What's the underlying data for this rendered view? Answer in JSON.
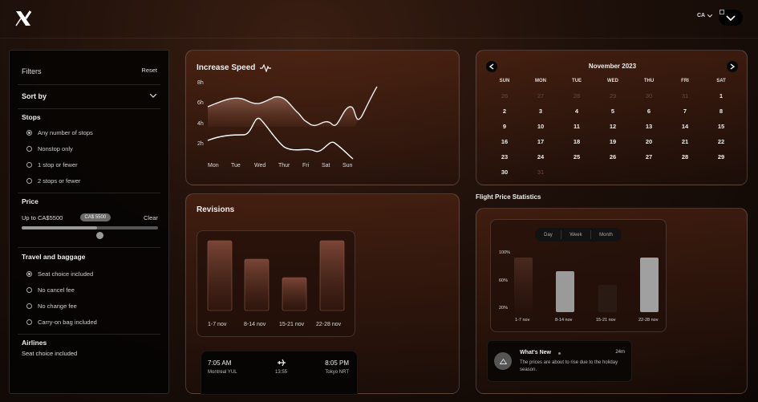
{
  "header": {
    "country": "CA",
    "menu_label": "menu"
  },
  "filters": {
    "title": "Filters",
    "reset": "Reset",
    "sort_by": "Sort by",
    "stops_title": "Stops",
    "stops_options": [
      {
        "label": "Any number of stops",
        "selected": true
      },
      {
        "label": "Nonstop only",
        "selected": false
      },
      {
        "label": "1 stop or fewer",
        "selected": false
      },
      {
        "label": "2 stops or fewer",
        "selected": false
      }
    ],
    "price_title": "Price",
    "price_up_to": "Up to CA$5500",
    "price_clear": "Clear",
    "price_pill": "CA$ 5500",
    "price_fraction": 0.55,
    "travel_title": "Travel and baggage",
    "travel_options": [
      {
        "label": "Seat choice included",
        "selected": true
      },
      {
        "label": "No cancel fee",
        "selected": false
      },
      {
        "label": "No change fee",
        "selected": false
      },
      {
        "label": "Carry-on bag included",
        "selected": false
      }
    ],
    "airlines_title": "Airlines",
    "airlines_value": "Seat choice included"
  },
  "speed": {
    "title": "Increase Speed",
    "y_ticks": [
      "8h",
      "6h",
      "4h",
      "2h"
    ],
    "days": [
      "Mon",
      "Tue",
      "Wed",
      "Thur",
      "Fri",
      "Sat",
      "Sun"
    ]
  },
  "revisions": {
    "title": "Revisions",
    "labels": [
      "1-7 nov",
      "8-14 nov",
      "15-21 nov",
      "22-28 nov"
    ],
    "flight": {
      "depart_time": "7:05 AM",
      "depart_place": "Montreal YUL",
      "duration": "13:55",
      "arrive_time": "8:05 PM",
      "arrive_place": "Tokyo NRT"
    }
  },
  "calendar": {
    "month": "November 2023",
    "weekdays": [
      "SUN",
      "MON",
      "TUE",
      "WED",
      "THU",
      "FRI",
      "SAT"
    ],
    "weeks": [
      [
        {
          "d": "26",
          "m": true
        },
        {
          "d": "27",
          "m": true
        },
        {
          "d": "28",
          "m": true
        },
        {
          "d": "29",
          "m": true
        },
        {
          "d": "30",
          "m": true
        },
        {
          "d": "31",
          "m": true
        },
        {
          "d": "1",
          "m": false
        }
      ],
      [
        {
          "d": "2",
          "m": false
        },
        {
          "d": "3",
          "m": false
        },
        {
          "d": "4",
          "m": false
        },
        {
          "d": "5",
          "m": false
        },
        {
          "d": "6",
          "m": false
        },
        {
          "d": "7",
          "m": false
        },
        {
          "d": "8",
          "m": false
        }
      ],
      [
        {
          "d": "9",
          "m": false
        },
        {
          "d": "10",
          "m": false
        },
        {
          "d": "11",
          "m": false
        },
        {
          "d": "12",
          "m": false
        },
        {
          "d": "13",
          "m": false
        },
        {
          "d": "14",
          "m": false
        },
        {
          "d": "15",
          "m": false
        }
      ],
      [
        {
          "d": "16",
          "m": false
        },
        {
          "d": "17",
          "m": false
        },
        {
          "d": "18",
          "m": false
        },
        {
          "d": "19",
          "m": false
        },
        {
          "d": "20",
          "m": false
        },
        {
          "d": "21",
          "m": false
        },
        {
          "d": "22",
          "m": false
        }
      ],
      [
        {
          "d": "23",
          "m": false
        },
        {
          "d": "24",
          "m": false
        },
        {
          "d": "25",
          "m": false
        },
        {
          "d": "26",
          "m": false
        },
        {
          "d": "27",
          "m": false
        },
        {
          "d": "28",
          "m": false
        },
        {
          "d": "29",
          "m": false
        }
      ],
      [
        {
          "d": "30",
          "m": false
        },
        {
          "d": "31",
          "m": true
        }
      ]
    ]
  },
  "stats": {
    "title": "Flight Price Statistics",
    "tabs": [
      "Day",
      "Week",
      "Month"
    ],
    "y_ticks": [
      "100%",
      "60%",
      "20%"
    ],
    "labels": [
      "1-7 nov",
      "8-14 nov",
      "15-21 nov",
      "22-28 nov"
    ],
    "whats_new_title": "What's New",
    "whats_new_time": "24m",
    "whats_new_text": "The prices are about to rise due to the holiday season."
  }
}
